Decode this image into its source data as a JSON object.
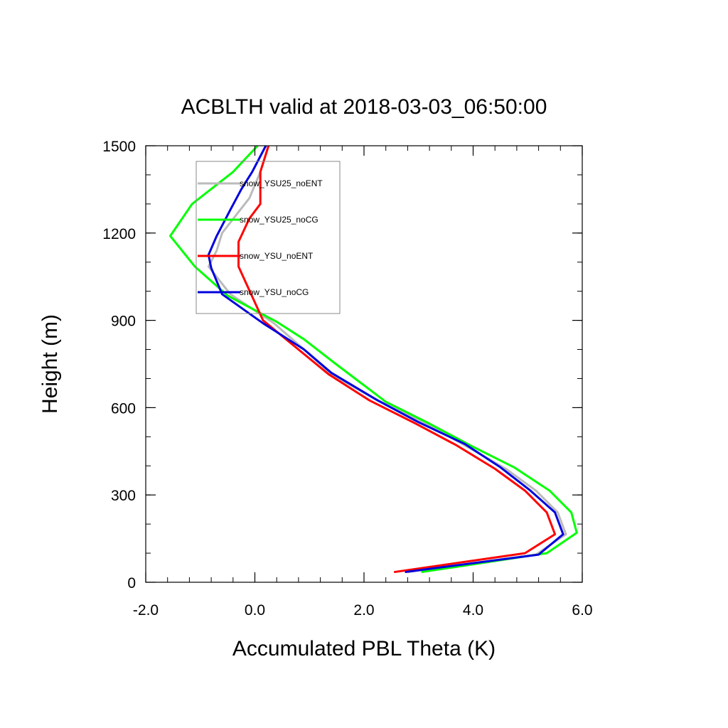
{
  "chart_data": {
    "type": "line",
    "title": "ACBLTH valid at 2018-03-03_06:50:00",
    "xlabel": "Accumulated PBL Theta (K)",
    "ylabel": "Height (m)",
    "xlim": [
      -2.0,
      6.0
    ],
    "ylim": [
      0,
      1500
    ],
    "xticks": [
      -2.0,
      0.0,
      2.0,
      4.0,
      6.0
    ],
    "xtick_labels": [
      "-2.0",
      "0.0",
      "2.0",
      "4.0",
      "6.0"
    ],
    "yticks": [
      0,
      300,
      600,
      900,
      1200,
      1500
    ],
    "ytick_labels": [
      "0",
      "300",
      "600",
      "900",
      "1200",
      "1500"
    ],
    "grid": false,
    "legend_position": "top-left",
    "series": [
      {
        "name": "snow_YSU25_noENT",
        "color": "#bbbbbb",
        "x": [
          2.8,
          5.15,
          5.7,
          5.55,
          5.15,
          4.6,
          3.9,
          3.1,
          2.2,
          1.4,
          0.9,
          0.35,
          -0.45,
          -0.85,
          -0.7,
          -0.6,
          -0.35,
          -0.1,
          0.1,
          0.25
        ],
        "y": [
          35,
          95,
          165,
          240,
          315,
          390,
          465,
          550,
          630,
          715,
          800,
          890,
          990,
          1085,
          1140,
          1200,
          1260,
          1320,
          1410,
          1500
        ]
      },
      {
        "name": "snow_YSU25_noCG",
        "color": "#00ff00",
        "x": [
          3.05,
          5.35,
          5.9,
          5.8,
          5.4,
          4.75,
          3.95,
          3.2,
          2.4,
          1.45,
          0.9,
          0.4,
          -0.5,
          -1.1,
          -1.55,
          -1.15,
          -0.4,
          0.05
        ],
        "y": [
          35,
          100,
          170,
          240,
          315,
          395,
          470,
          545,
          620,
          755,
          835,
          895,
          985,
          1085,
          1190,
          1300,
          1410,
          1500
        ]
      },
      {
        "name": "snow_YSU_noENT",
        "color": "#ff0000",
        "x": [
          2.55,
          4.95,
          5.5,
          5.35,
          4.95,
          4.4,
          3.7,
          2.95,
          2.1,
          1.35,
          0.15,
          -0.3,
          -0.3,
          -0.1,
          0.1,
          0.1,
          0.1,
          0.25
        ],
        "y": [
          35,
          100,
          165,
          240,
          315,
          390,
          470,
          545,
          625,
          715,
          900,
          1085,
          1170,
          1250,
          1300,
          1360,
          1410,
          1500
        ]
      },
      {
        "name": "snow_YSU_noCG",
        "color": "#0000dd",
        "x": [
          2.75,
          5.2,
          5.65,
          5.5,
          5.05,
          4.5,
          3.85,
          3.0,
          2.25,
          1.4,
          0.9,
          0.15,
          -0.6,
          -0.8,
          -0.85,
          -0.7,
          -0.45,
          -0.25,
          -0.05,
          0.2
        ],
        "y": [
          35,
          95,
          165,
          240,
          315,
          395,
          475,
          550,
          625,
          720,
          800,
          890,
          990,
          1080,
          1125,
          1190,
          1280,
          1350,
          1410,
          1500
        ]
      }
    ]
  }
}
